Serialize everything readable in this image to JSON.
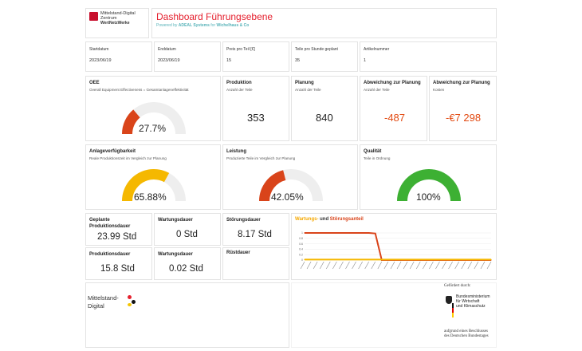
{
  "header": {
    "logo_line1": "Mittelstand-Digital",
    "logo_line2": "Zentrum",
    "logo_line3": "WertNetzWerke",
    "title": "Dashboard Führungsebene",
    "subtitle_prefix": "Powered by",
    "subtitle_company": "ADEAL Systems",
    "subtitle_for": "for",
    "subtitle_client": "Wichelhaus & Co",
    "title_color": "#e5202e",
    "subtitle_color": "#58b3b9"
  },
  "params": [
    {
      "label": "Startdatum",
      "value": "2023/06/19"
    },
    {
      "label": "Enddatum",
      "value": "2023/06/19"
    },
    {
      "label": "Preis pro Teil [€]",
      "value": "15"
    },
    {
      "label": "Teile pro Stunde geplant",
      "value": "35"
    },
    {
      "label": "Artikelnummer",
      "value": "1"
    }
  ],
  "oee": {
    "title": "OEE",
    "subtitle": "Overall Equipment Effectiveness = Gesamtanlageneffektivität",
    "value_text": "27.7%",
    "fraction": 0.277,
    "color": "#d9441a"
  },
  "produktion": {
    "title": "Produktion",
    "subtitle": "Anzahl der Teile",
    "value": "353"
  },
  "planung": {
    "title": "Planung",
    "subtitle": "Anzahl der Teile",
    "value": "840"
  },
  "abw_teile": {
    "title": "Abweichung zur Planung",
    "subtitle": "Anzahl der Teile",
    "value": "-487"
  },
  "abw_kosten": {
    "title": "Abweichung zur Planung",
    "subtitle": "Kosten",
    "value": "-€7 298"
  },
  "verfuegbarkeit": {
    "title": "Anlageverfügbarkeit",
    "subtitle": "Reale Produktionszeit im Vergleich zur Planung",
    "value_text": "65.88%",
    "fraction": 0.6588,
    "color": "#f5b800"
  },
  "leistung": {
    "title": "Leistung",
    "subtitle": "Produzierte Teile im Vergleich zur Planung",
    "value_text": "42.05%",
    "fraction": 0.4205,
    "color": "#d9441a"
  },
  "qualitaet": {
    "title": "Qualität",
    "subtitle": "Teile in Ordnung",
    "value_text": "100%",
    "fraction": 1.0,
    "color": "#3db033"
  },
  "durations": {
    "geplant_label": "Geplante Produktionsdauer",
    "geplant_value": "23.99 Std",
    "wartung_label": "Wartungsdauer",
    "wartung_value": "0 Std",
    "stoerung_label": "Störungsdauer",
    "stoerung_value": "8.17 Std",
    "produktion_label": "Produktionsdauer",
    "produktion_value": "15.8 Std",
    "wartungs2_label": "Wartungsdauer",
    "wartungs2_value": "0.02 Std",
    "ruest_label": "Rüstdauer"
  },
  "chart_data": {
    "type": "line",
    "title_part1": "Wartungs-",
    "title_mid": " und ",
    "title_part2": "Störungsanteil",
    "title_color1": "#f5a800",
    "title_color2": "#d9441a",
    "y_ticks": [
      "0",
      "0.2",
      "0.4",
      "0.6",
      "0.8",
      "1"
    ],
    "ylim": [
      0,
      1
    ],
    "n_points": 30,
    "series": [
      {
        "color": "#d9441a",
        "values": [
          1,
          1,
          1,
          1,
          1,
          1,
          1,
          1,
          1,
          1,
          1,
          0.98,
          0,
          0,
          0,
          0,
          0,
          0,
          0,
          0,
          0,
          0,
          0,
          0,
          0,
          0,
          0,
          0,
          0,
          0
        ]
      },
      {
        "color": "#f5b800",
        "values": [
          0.02,
          0.02,
          0.02,
          0.02,
          0.02,
          0.02,
          0.02,
          0.02,
          0.02,
          0.02,
          0.02,
          0.02,
          0.02,
          0.02,
          0.02,
          0.02,
          0.02,
          0.02,
          0.02,
          0.02,
          0.02,
          0.02,
          0.02,
          0.02,
          0.02,
          0.02,
          0.02,
          0.02,
          0.02,
          0.02
        ]
      }
    ]
  },
  "footer": {
    "md_line1": "Mittelstand-",
    "md_line2": "Digital",
    "gefoerdert": "Gefördert durch:",
    "bm_line1": "Bundesministerium",
    "bm_line2": "für Wirtschaft",
    "bm_line3": "und Klimaschutz",
    "beschluss1": "aufgrund eines Beschlusses",
    "beschluss2": "des Deutschen Bundestages"
  }
}
